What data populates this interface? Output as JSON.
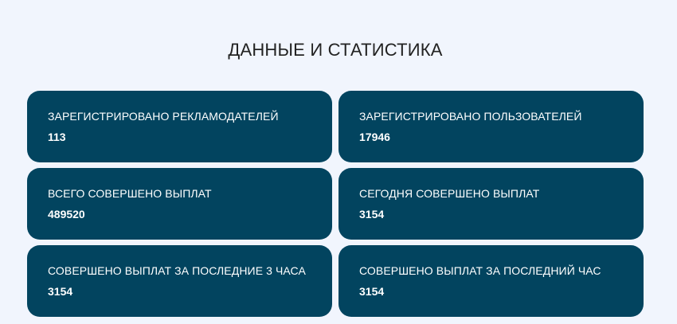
{
  "title": "ДАННЫЕ И СТАТИСТИКА",
  "colors": {
    "card": "#02445f",
    "background": "#f1f5fd"
  },
  "stats": [
    {
      "label": "ЗАРЕГИСТРИРОВАНО РЕКЛАМОДАТЕЛЕЙ",
      "value": "113"
    },
    {
      "label": "ЗАРЕГИСТРИРОВАНО ПОЛЬЗОВАТЕЛЕЙ",
      "value": "17946"
    },
    {
      "label": "ВСЕГО СОВЕРШЕНО ВЫПЛАТ",
      "value": "489520"
    },
    {
      "label": "СЕГОДНЯ СОВЕРШЕНО ВЫПЛАТ",
      "value": "3154"
    },
    {
      "label": "СОВЕРШЕНО ВЫПЛАТ ЗА ПОСЛЕДНИЕ 3 ЧАСА",
      "value": "3154"
    },
    {
      "label": "СОВЕРШЕНО ВЫПЛАТ ЗА ПОСЛЕДНИЙ ЧАС",
      "value": "3154"
    }
  ]
}
